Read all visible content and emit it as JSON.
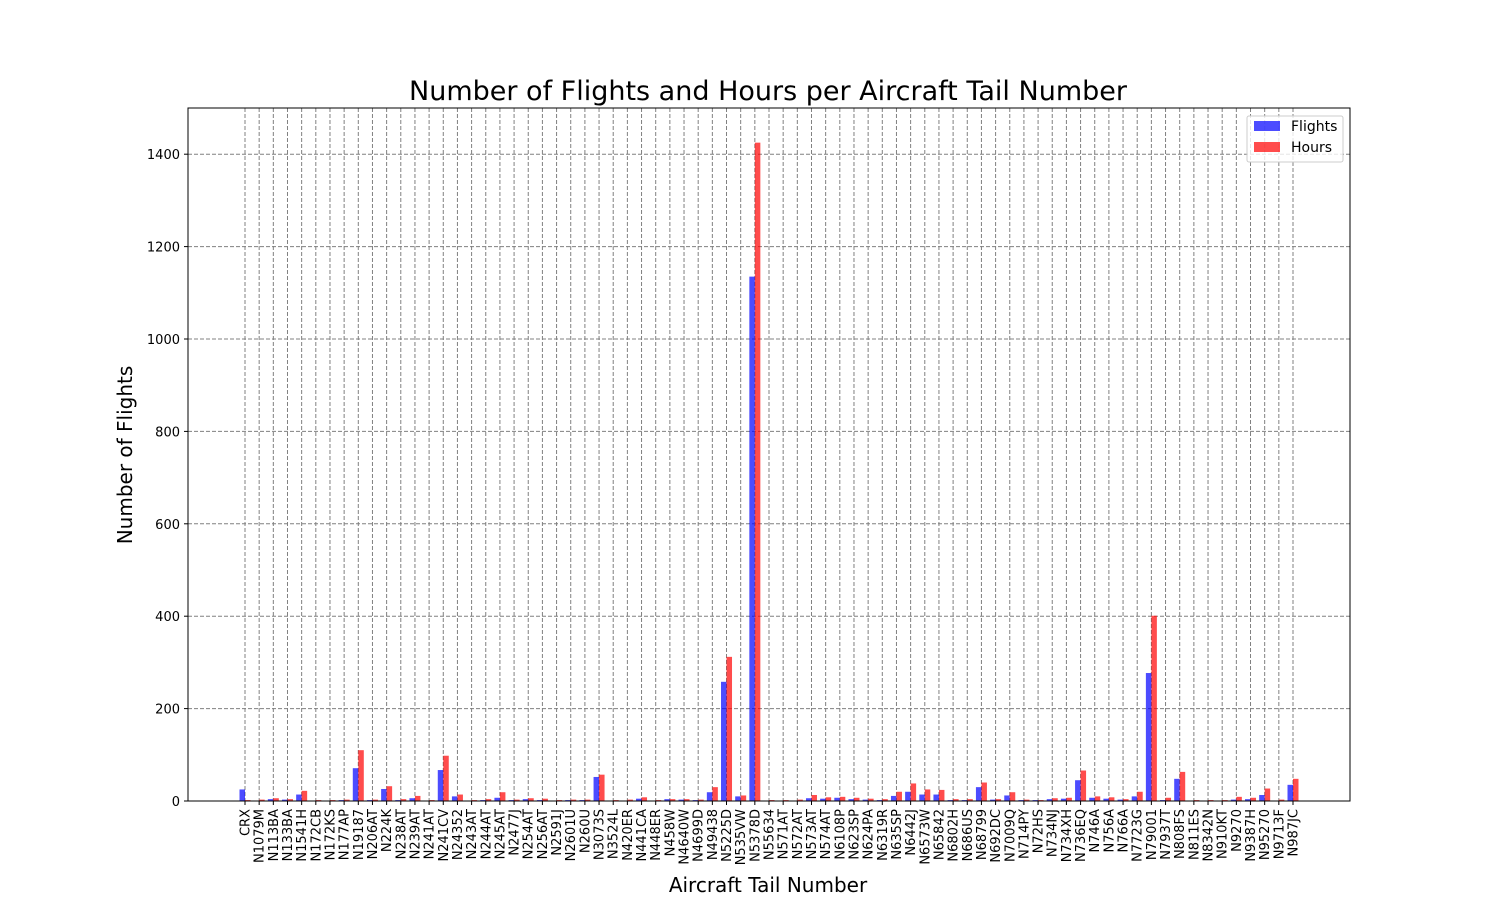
{
  "chart_data": {
    "type": "bar",
    "title": "Number of Flights and Hours per Aircraft Tail Number",
    "xlabel": "Aircraft Tail Number",
    "ylabel": "Number of Flights",
    "ylim": [
      0,
      1500
    ],
    "yticks": [
      0,
      200,
      400,
      600,
      800,
      1000,
      1200,
      1400
    ],
    "grid": true,
    "legend_position": "top-right",
    "categories": [
      "CRX",
      "N1079M",
      "N113BA",
      "N133BA",
      "N1541H",
      "N172CB",
      "N172KS",
      "N177AP",
      "N19187",
      "N206AT",
      "N224K",
      "N238AT",
      "N239AT",
      "N241AT",
      "N241CV",
      "N24352",
      "N243AT",
      "N244AT",
      "N245AT",
      "N2477J",
      "N254AT",
      "N256AT",
      "N2591J",
      "N2601U",
      "N260U",
      "N3073S",
      "N3524L",
      "N420ER",
      "N441CA",
      "N448ER",
      "N458W",
      "N4640W",
      "N4699D",
      "N49438",
      "N5225D",
      "N535VW",
      "N5378D",
      "N55634",
      "N571AT",
      "N572AT",
      "N573AT",
      "N574AT",
      "N6108P",
      "N623SP",
      "N624PA",
      "N6319R",
      "N635SP",
      "N6442J",
      "N6573W",
      "N65842",
      "N6802H",
      "N686US",
      "N68799",
      "N692DC",
      "N7009Q",
      "N714PY",
      "N72HS",
      "N734NJ",
      "N734XH",
      "N736EQ",
      "N746A",
      "N756A",
      "N766A",
      "N7723G",
      "N79001",
      "N7937T",
      "N808FS",
      "N811ES",
      "N8342N",
      "N910KT",
      "N9270",
      "N9387H",
      "N95270",
      "N9713F",
      "N987JC"
    ],
    "series": [
      {
        "name": "Flights",
        "color": "#0000ff",
        "values": [
          25,
          1,
          4,
          3,
          14,
          1,
          1,
          2,
          71,
          2,
          26,
          2,
          6,
          1,
          67,
          10,
          1,
          2,
          7,
          2,
          4,
          2,
          1,
          2,
          2,
          52,
          1,
          1,
          5,
          1,
          4,
          3,
          2,
          19,
          258,
          10,
          1135,
          1,
          1,
          1,
          6,
          5,
          7,
          4,
          3,
          2,
          11,
          20,
          14,
          14,
          2,
          2,
          30,
          3,
          12,
          2,
          2,
          4,
          5,
          45,
          7,
          5,
          3,
          10,
          277,
          2,
          48,
          1,
          1,
          1,
          3,
          4,
          13,
          1,
          35
        ]
      },
      {
        "name": "Hours",
        "color": "#ff0000",
        "values": [
          2,
          3,
          6,
          4,
          22,
          2,
          2,
          3,
          110,
          3,
          32,
          4,
          11,
          2,
          98,
          14,
          2,
          4,
          19,
          3,
          6,
          5,
          2,
          3,
          3,
          57,
          2,
          3,
          8,
          2,
          4,
          4,
          3,
          30,
          312,
          12,
          1425,
          2,
          2,
          3,
          13,
          8,
          9,
          7,
          5,
          4,
          20,
          38,
          25,
          24,
          4,
          4,
          40,
          4,
          19,
          3,
          2,
          6,
          7,
          66,
          10,
          8,
          4,
          20,
          401,
          7,
          63,
          2,
          2,
          2,
          9,
          7,
          27,
          3,
          48
        ]
      }
    ]
  }
}
